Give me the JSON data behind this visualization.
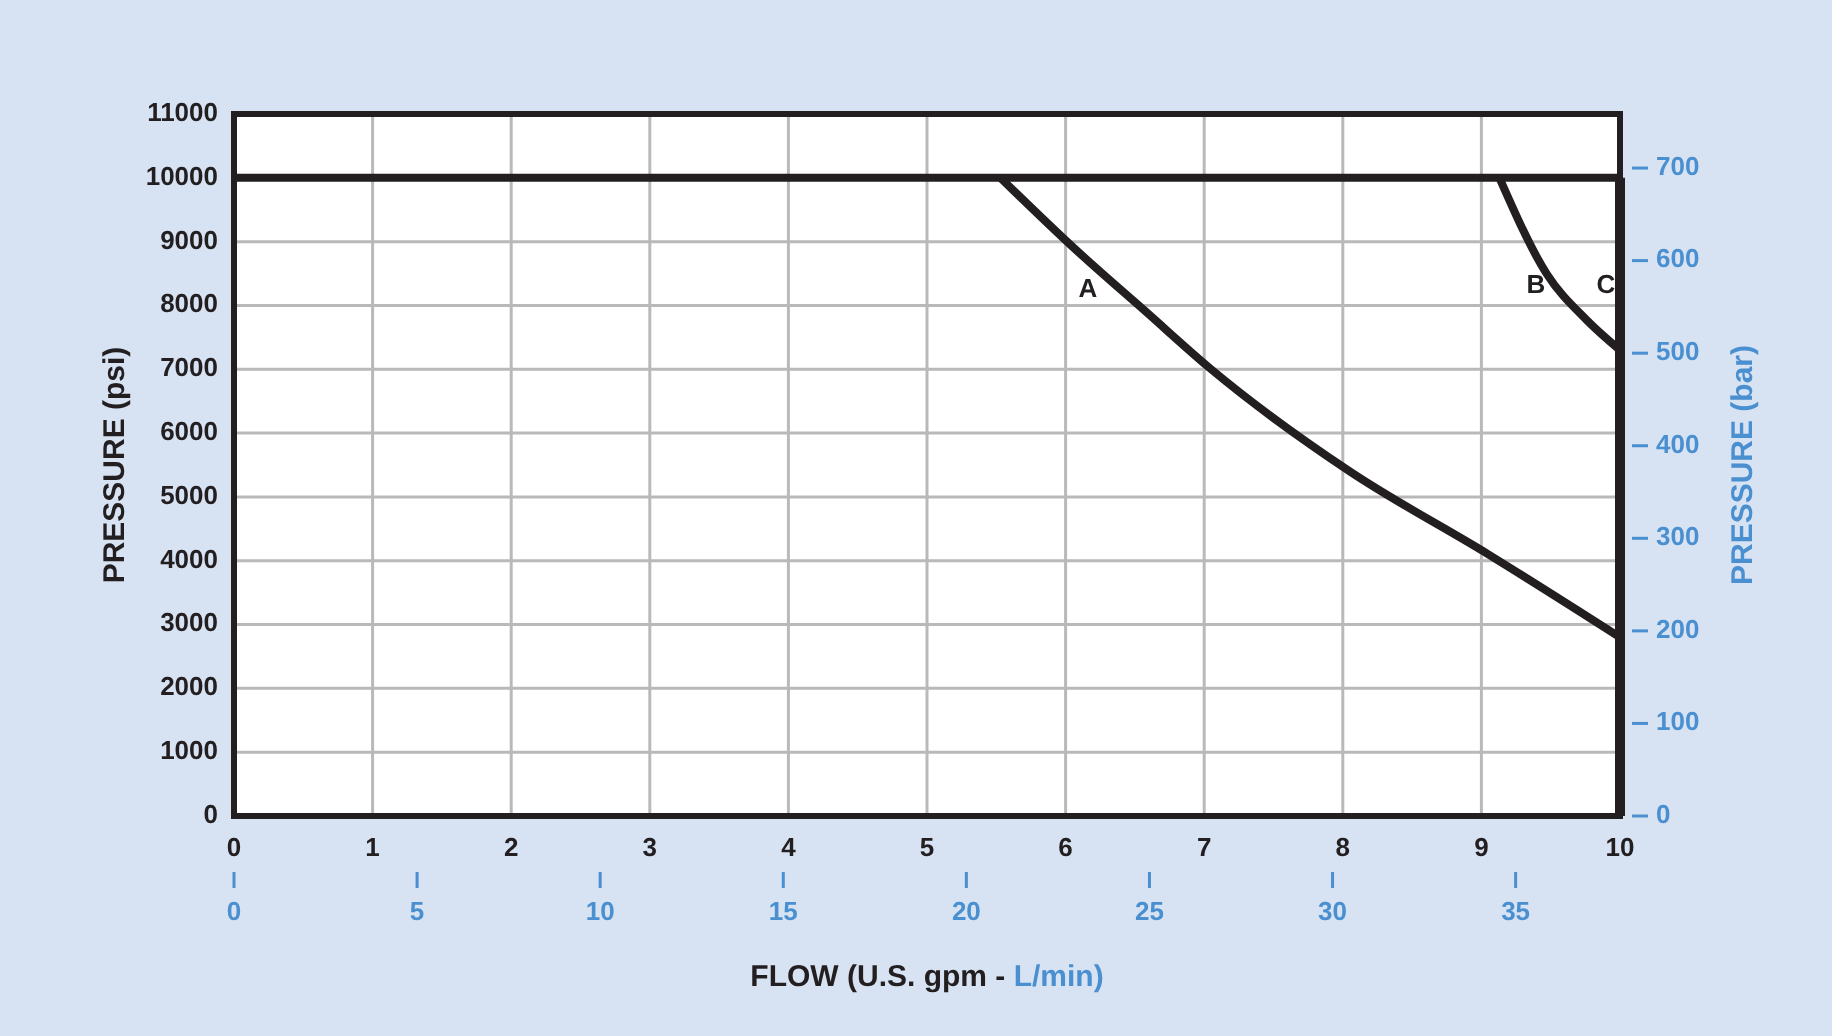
{
  "chart_data": {
    "type": "line",
    "xlabel": "FLOW (U.S. gpm -",
    "x2label": "L/min)",
    "ylabel": "PRESSURE (psi)",
    "y2label": "PRESSURE (bar)",
    "xlim": [
      0,
      10
    ],
    "xticks": [
      0,
      1,
      2,
      3,
      4,
      5,
      6,
      7,
      8,
      9,
      10
    ],
    "x2lim": [
      0,
      37.85
    ],
    "x2ticks": [
      0,
      5,
      10,
      15,
      20,
      25,
      30,
      35
    ],
    "ylim": [
      0,
      11000
    ],
    "yticks": [
      0,
      1000,
      2000,
      3000,
      4000,
      5000,
      6000,
      7000,
      8000,
      9000,
      10000,
      11000
    ],
    "y2lim": [
      0,
      758.4
    ],
    "y2ticks": [
      0,
      100,
      200,
      300,
      400,
      500,
      600,
      700
    ],
    "grid": true,
    "marker": "none",
    "line_style": "solid",
    "series": [
      {
        "color": "#231f20",
        "x": [
          5.53,
          6.06,
          6.58,
          7.05,
          8.05,
          9.05,
          10
        ],
        "values": [
          10000,
          8900,
          7900,
          7000,
          5400,
          4100,
          2800
        ]
      },
      {
        "color": "#231f20",
        "x": [
          9.13,
          9.47,
          9.76,
          10
        ],
        "values": [
          10000,
          8500,
          7770,
          7300
        ]
      }
    ],
    "ref_lines": [
      {
        "axis": "y",
        "value": 10000,
        "color": "#231f20"
      }
    ],
    "annotations": [
      "A",
      "B",
      "C"
    ]
  }
}
